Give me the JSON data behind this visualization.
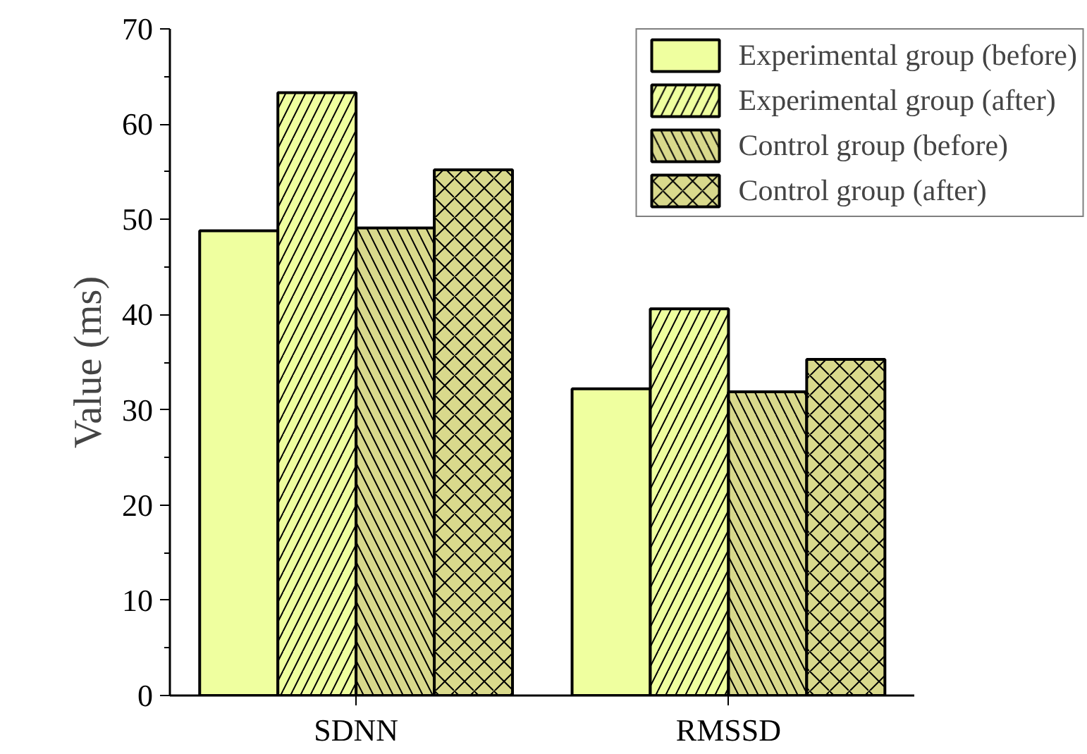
{
  "chart_data": {
    "type": "bar",
    "ylabel": "Value (ms)",
    "categories": [
      "SDNN",
      "RMSSD"
    ],
    "series": [
      {
        "name": "Experimental group (before)",
        "color": "#efff9f",
        "values": [
          48.8,
          32.2
        ]
      },
      {
        "name": "Experimental group (after)",
        "color": "#efff9f",
        "values": [
          63.3,
          40.6
        ]
      },
      {
        "name": "Control group (before)",
        "color": "#d9d98c",
        "values": [
          49.1,
          31.9
        ]
      },
      {
        "name": "Control group (after)",
        "color": "#d9d98c",
        "values": [
          55.2,
          35.3
        ]
      }
    ],
    "ylim": [
      0,
      70
    ],
    "yticks": [
      0,
      10,
      20,
      30,
      40,
      50,
      60,
      70
    ],
    "legend": "top right",
    "grid": false
  }
}
